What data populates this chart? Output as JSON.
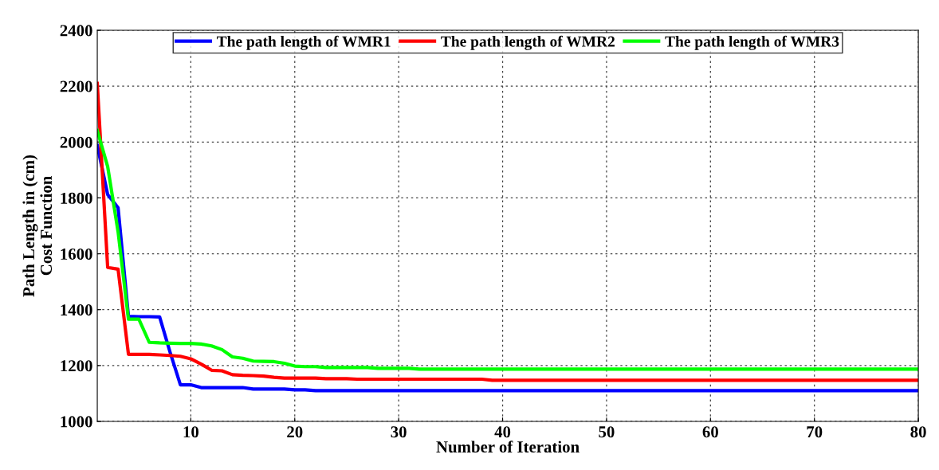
{
  "chart_data": {
    "type": "line",
    "xlabel": "Number of Iteration",
    "ylabel": "Path Length in (cm)\nCost Function",
    "x": [
      1,
      2,
      3,
      4,
      5,
      6,
      7,
      8,
      9,
      10,
      11,
      12,
      13,
      14,
      15,
      16,
      17,
      18,
      19,
      20,
      21,
      22,
      23,
      24,
      25,
      26,
      27,
      28,
      29,
      30,
      31,
      32,
      33,
      34,
      35,
      36,
      37,
      38,
      39,
      40,
      41,
      42,
      43,
      44,
      45,
      46,
      47,
      48,
      49,
      50,
      51,
      52,
      53,
      54,
      55,
      56,
      57,
      58,
      59,
      60,
      61,
      62,
      63,
      64,
      65,
      66,
      67,
      68,
      69,
      70,
      71,
      72,
      73,
      74,
      75,
      76,
      77,
      78,
      79,
      80
    ],
    "series": [
      {
        "name": "The path length of WMR1",
        "color": "#0000ff",
        "values": [
          1988,
          1812,
          1765,
          1376,
          1375,
          1375,
          1374,
          1248,
          1131,
          1131,
          1121,
          1121,
          1121,
          1121,
          1121,
          1116,
          1116,
          1116,
          1116,
          1113,
          1113,
          1110,
          1110,
          1110,
          1110,
          1110,
          1110,
          1110,
          1110,
          1110,
          1110,
          1110,
          1110,
          1110,
          1110,
          1110,
          1110,
          1110,
          1110,
          1110,
          1110,
          1110,
          1110,
          1110,
          1110,
          1110,
          1110,
          1110,
          1110,
          1110,
          1110,
          1110,
          1110,
          1110,
          1110,
          1110,
          1110,
          1110,
          1110,
          1110,
          1110,
          1110,
          1110,
          1110,
          1110,
          1110,
          1110,
          1110,
          1110,
          1110,
          1110,
          1110,
          1110,
          1110,
          1110,
          1110,
          1110,
          1110,
          1110,
          1110
        ]
      },
      {
        "name": "The path length of WMR2",
        "color": "#ff0000",
        "values": [
          2210,
          1551,
          1545,
          1240,
          1240,
          1240,
          1238,
          1236,
          1233,
          1224,
          1205,
          1183,
          1181,
          1167,
          1165,
          1164,
          1162,
          1158,
          1155,
          1155,
          1155,
          1155,
          1153,
          1153,
          1153,
          1151,
          1151,
          1151,
          1151,
          1151,
          1151,
          1151,
          1151,
          1151,
          1151,
          1151,
          1151,
          1151,
          1147,
          1147,
          1147,
          1147,
          1147,
          1147,
          1147,
          1147,
          1147,
          1147,
          1147,
          1147,
          1147,
          1147,
          1147,
          1147,
          1147,
          1147,
          1147,
          1147,
          1147,
          1147,
          1147,
          1147,
          1147,
          1147,
          1147,
          1147,
          1147,
          1147,
          1147,
          1147,
          1147,
          1147,
          1147,
          1147,
          1147,
          1147,
          1147,
          1147,
          1147,
          1147
        ]
      },
      {
        "name": "The path length of WMR3",
        "color": "#00ff00",
        "values": [
          2041,
          1912,
          1679,
          1366,
          1366,
          1283,
          1281,
          1280,
          1279,
          1279,
          1277,
          1270,
          1257,
          1231,
          1226,
          1216,
          1215,
          1214,
          1208,
          1198,
          1196,
          1196,
          1193,
          1193,
          1193,
          1193,
          1193,
          1190,
          1190,
          1190,
          1190,
          1187,
          1187,
          1187,
          1187,
          1187,
          1187,
          1187,
          1187,
          1187,
          1187,
          1187,
          1187,
          1187,
          1187,
          1187,
          1187,
          1187,
          1187,
          1187,
          1187,
          1187,
          1187,
          1187,
          1187,
          1187,
          1187,
          1187,
          1187,
          1187,
          1187,
          1187,
          1187,
          1187,
          1187,
          1187,
          1187,
          1187,
          1187,
          1187,
          1187,
          1187,
          1187,
          1187,
          1187,
          1187,
          1187,
          1187,
          1187,
          1187
        ]
      }
    ],
    "xlim": [
      1,
      80
    ],
    "xticks": [
      10,
      20,
      30,
      40,
      50,
      60,
      70,
      80
    ],
    "ylim": [
      1000,
      2400
    ],
    "yticks": [
      1000,
      1200,
      1400,
      1600,
      1800,
      2000,
      2200,
      2400
    ],
    "grid": true,
    "legend": "top",
    "line_style": "solid",
    "marker": "none"
  }
}
